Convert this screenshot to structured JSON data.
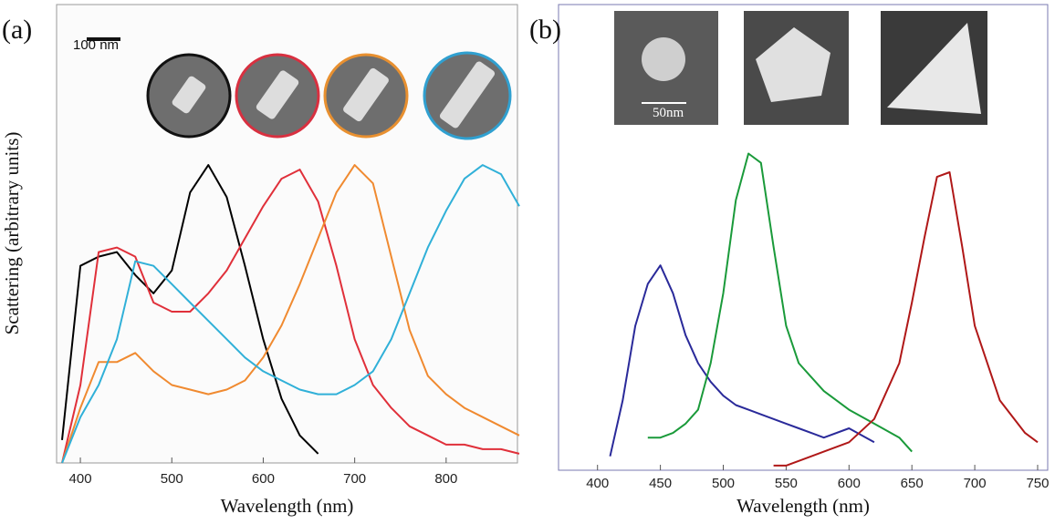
{
  "chart_data": [
    {
      "type": "line",
      "panel_label": "(a)",
      "x_label": "Wavelength (nm)",
      "y_label": "Scattering (arbitrary units)",
      "annotations": [
        "100 nm"
      ],
      "xlim": [
        374,
        878
      ],
      "xticks": [
        400,
        500,
        600,
        700,
        800
      ],
      "ylim": [
        0,
        1
      ],
      "x": [
        380,
        400,
        420,
        440,
        460,
        480,
        500,
        520,
        540,
        560,
        580,
        600,
        620,
        640,
        660,
        680,
        700,
        720,
        740,
        760,
        780,
        800,
        820,
        840,
        860,
        880
      ],
      "series": [
        {
          "color": "#000000",
          "values": [
            0.05,
            0.43,
            0.45,
            0.46,
            0.41,
            0.37,
            0.42,
            0.59,
            0.65,
            0.58,
            0.43,
            0.27,
            0.14,
            0.06,
            0.02,
            null,
            null,
            null,
            null,
            null,
            null,
            null,
            null,
            null,
            null,
            null
          ]
        },
        {
          "color": "#e0303a",
          "values": [
            0.0,
            0.17,
            0.46,
            0.47,
            0.45,
            0.35,
            0.33,
            0.33,
            0.37,
            0.42,
            0.49,
            0.56,
            0.62,
            0.64,
            0.57,
            0.43,
            0.27,
            0.17,
            0.12,
            0.08,
            0.06,
            0.04,
            0.04,
            0.03,
            0.03,
            0.02
          ]
        },
        {
          "color": "#f08a30",
          "values": [
            0.0,
            0.12,
            0.22,
            0.22,
            0.24,
            0.2,
            0.17,
            0.16,
            0.15,
            0.16,
            0.18,
            0.23,
            0.3,
            0.39,
            0.49,
            0.59,
            0.65,
            0.61,
            0.45,
            0.29,
            0.19,
            0.15,
            0.12,
            0.1,
            0.08,
            0.06
          ]
        },
        {
          "color": "#30b0d8",
          "values": [
            0.0,
            0.1,
            0.17,
            0.27,
            0.44,
            0.43,
            0.39,
            0.35,
            0.31,
            0.27,
            0.23,
            0.2,
            0.18,
            0.16,
            0.15,
            0.15,
            0.17,
            0.2,
            0.27,
            0.37,
            0.47,
            0.55,
            0.62,
            0.65,
            0.63,
            0.56
          ]
        }
      ]
    },
    {
      "type": "line",
      "panel_label": "(b)",
      "x_label": "Wavelength (nm)",
      "annotations": [
        "50nm"
      ],
      "xlim": [
        369,
        758
      ],
      "xticks": [
        400,
        450,
        500,
        550,
        600,
        650,
        700,
        750
      ],
      "ylim": [
        0,
        1
      ],
      "x": [
        410,
        420,
        430,
        440,
        450,
        460,
        470,
        480,
        490,
        500,
        510,
        520,
        530,
        540,
        550,
        560,
        580,
        600,
        620,
        640,
        650,
        660,
        670,
        680,
        690,
        700,
        720,
        740,
        750
      ],
      "series": [
        {
          "color": "#2a2a9a",
          "values": [
            0.03,
            0.15,
            0.31,
            0.4,
            0.44,
            0.38,
            0.29,
            0.23,
            0.19,
            0.16,
            0.14,
            0.13,
            0.12,
            0.11,
            0.1,
            0.09,
            0.07,
            0.09,
            0.06,
            null,
            null,
            null,
            null,
            null,
            null,
            null,
            null,
            null,
            null
          ]
        },
        {
          "color": "#1a9a3a",
          "values": [
            null,
            null,
            null,
            0.07,
            0.07,
            0.08,
            0.1,
            0.13,
            0.23,
            0.38,
            0.58,
            0.68,
            0.66,
            0.48,
            0.31,
            0.23,
            0.17,
            0.13,
            0.1,
            0.07,
            0.04,
            null,
            null,
            null,
            null,
            null,
            null,
            null,
            null
          ]
        },
        {
          "color": "#b01818",
          "values": [
            null,
            null,
            null,
            null,
            null,
            null,
            null,
            null,
            null,
            null,
            null,
            null,
            null,
            0.01,
            0.01,
            0.02,
            0.04,
            0.06,
            0.11,
            0.23,
            0.36,
            0.5,
            0.63,
            0.64,
            0.48,
            0.31,
            0.15,
            0.08,
            0.06
          ]
        }
      ]
    }
  ]
}
